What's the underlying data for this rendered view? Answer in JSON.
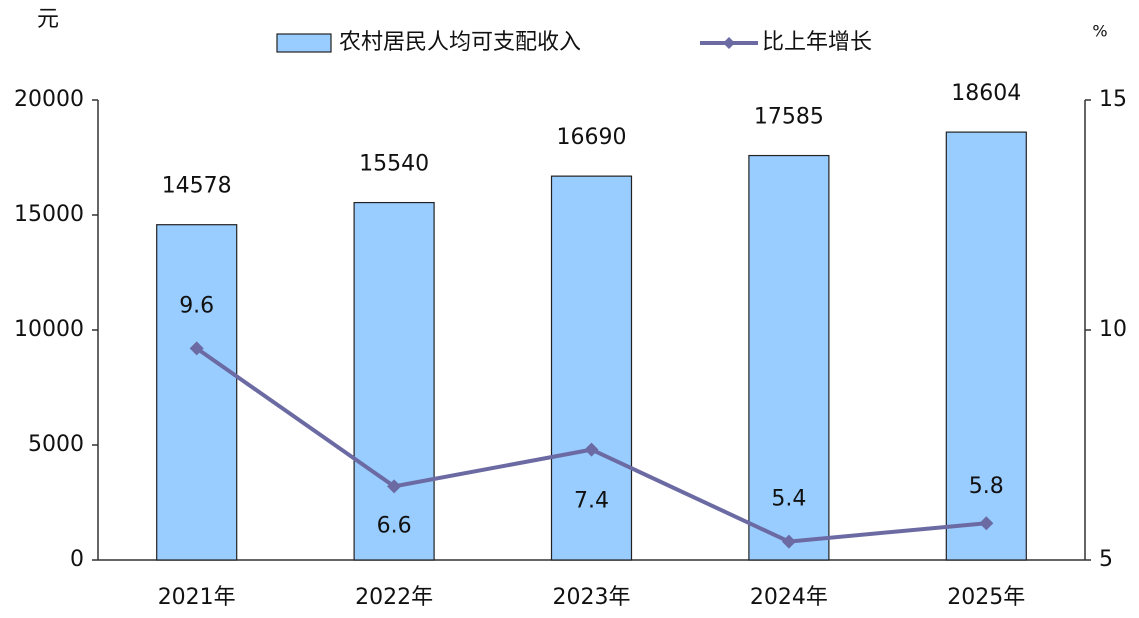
{
  "chart_data": {
    "type": "combo",
    "y_unit": "元",
    "y2_unit": "%",
    "categories": [
      "2021年",
      "2022年",
      "2023年",
      "2024年",
      "2025年"
    ],
    "series": [
      {
        "name": "农村居民人均可支配收入",
        "type": "bar",
        "color": "#99ccff",
        "values": [
          14578,
          15540,
          16690,
          17585,
          18604
        ]
      },
      {
        "name": "比上年增长",
        "type": "line",
        "axis": "y2",
        "color": "#6b6aa3",
        "values": [
          9.6,
          6.6,
          7.4,
          5.4,
          5.8
        ]
      }
    ],
    "ylim": [
      0,
      20000
    ],
    "yticks": [
      0,
      5000,
      10000,
      15000,
      20000
    ],
    "y2lim": [
      5,
      15
    ],
    "y2ticks": [
      5,
      10,
      15
    ],
    "grid": false
  }
}
